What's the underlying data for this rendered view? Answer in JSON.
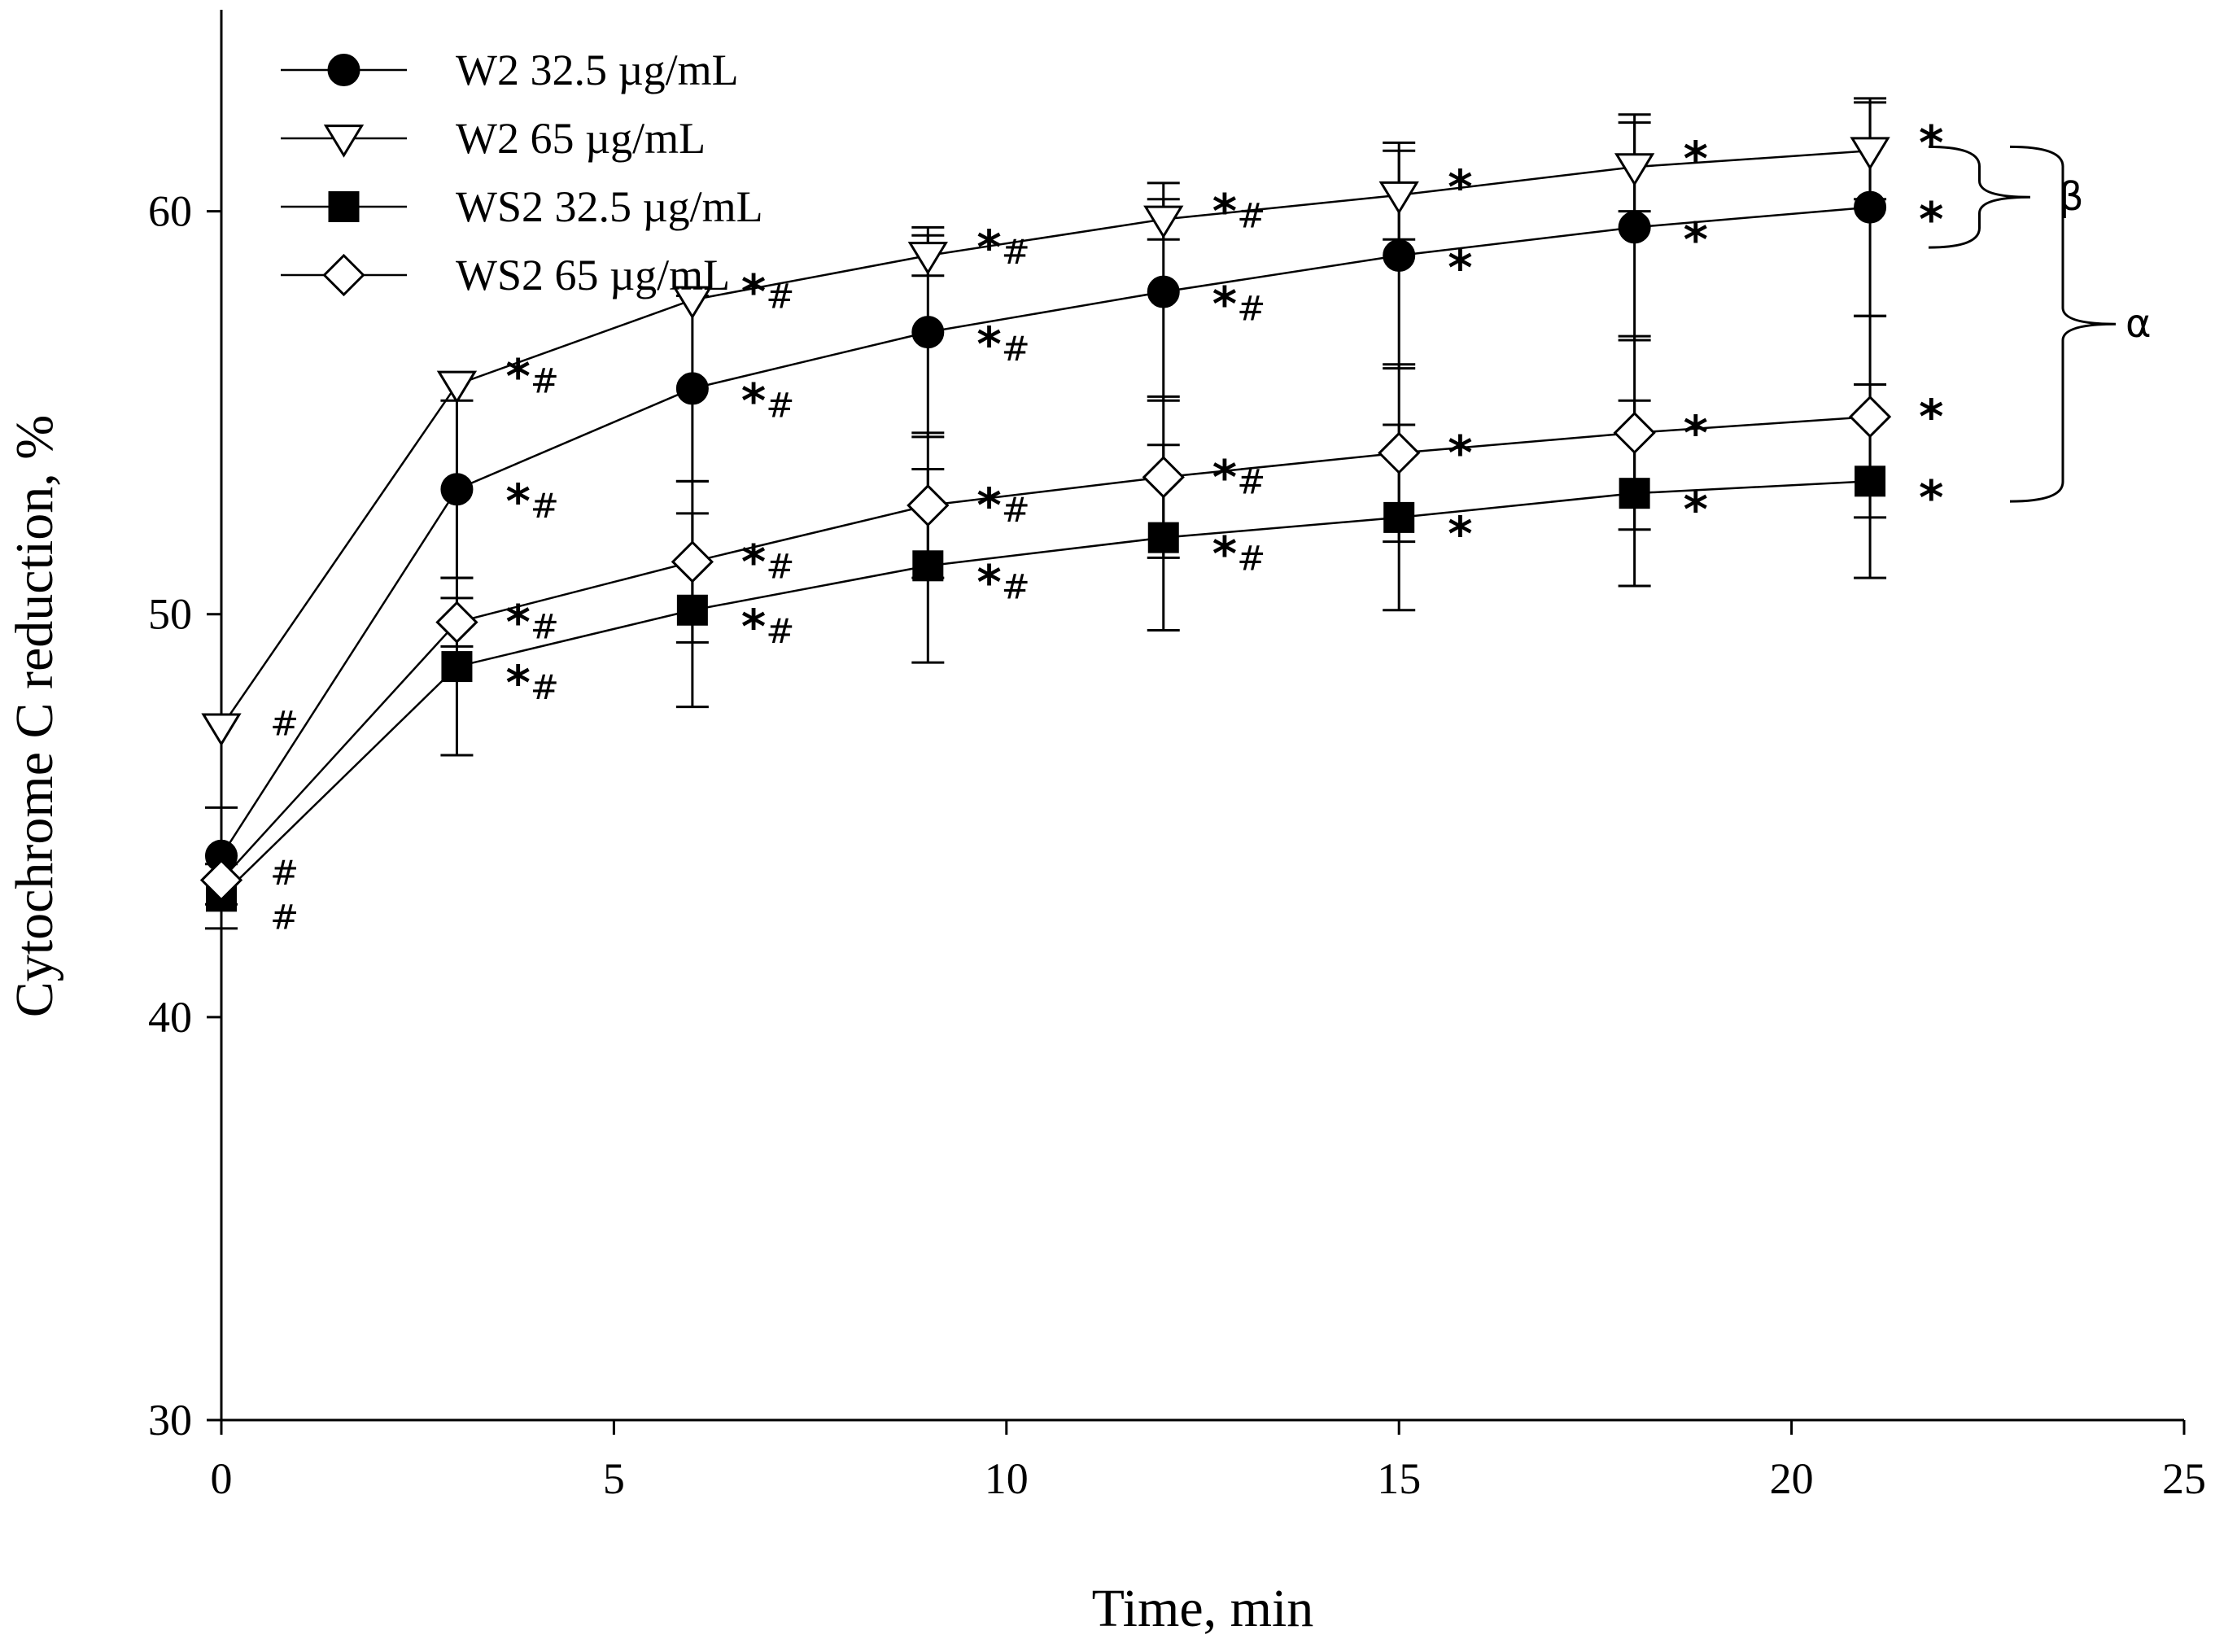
{
  "chart_data": {
    "type": "line",
    "title": "",
    "xlabel": "Time, min",
    "ylabel": "Cytochrome C reduction, %",
    "xlim": [
      0,
      25
    ],
    "ylim": [
      30,
      65
    ],
    "x_ticks": [
      0,
      5,
      10,
      15,
      20,
      25
    ],
    "y_ticks": [
      30,
      40,
      50,
      60
    ],
    "x_tick_labels": [
      "0",
      "5",
      "10",
      "15",
      "20",
      "25"
    ],
    "y_tick_labels": [
      "30",
      "40",
      "50",
      "60"
    ],
    "grid": false,
    "legend_position": "top-left",
    "x": [
      0,
      3,
      6,
      9,
      12,
      15,
      18,
      21
    ],
    "series": [
      {
        "name": "W2 32.5 µg/mL",
        "marker": "filled-circle",
        "values": [
          44.0,
          53.1,
          55.6,
          57.0,
          58.0,
          58.9,
          59.6,
          60.1
        ],
        "errors": [
          1.2,
          2.2,
          2.3,
          2.6,
          2.7,
          2.8,
          2.8,
          2.7
        ],
        "annotations": [
          "#",
          "*#",
          "*#",
          "*#",
          "*#",
          "*",
          "*",
          "*"
        ]
      },
      {
        "name": "W2 65 µg/mL",
        "marker": "open-triangle-down",
        "values": [
          47.2,
          55.7,
          57.8,
          58.9,
          59.8,
          60.4,
          61.1,
          61.5
        ],
        "errors": [
          0.0,
          0.0,
          0.0,
          0.5,
          0.5,
          1.1,
          1.1,
          1.2
        ],
        "annotations": [
          "#",
          "*#",
          "*#",
          "*#",
          "*#",
          "*",
          "*",
          "*"
        ]
      },
      {
        "name": "WS2 32.5 µg/mL",
        "marker": "filled-square",
        "values": [
          43.0,
          48.7,
          50.1,
          51.2,
          51.9,
          52.4,
          53.0,
          53.3
        ],
        "errors": [
          0.8,
          2.2,
          2.4,
          2.4,
          2.3,
          2.3,
          2.3,
          2.4
        ],
        "annotations": [
          "#",
          "*#",
          "*#",
          "*#",
          "*#",
          "*",
          "*",
          "*"
        ]
      },
      {
        "name": "WS2 65 µg/mL",
        "marker": "open-diamond",
        "values": [
          43.4,
          49.8,
          51.3,
          52.7,
          53.4,
          54.0,
          54.5,
          54.9
        ],
        "errors": [
          0.0,
          0.6,
          2.0,
          1.8,
          2.0,
          2.2,
          2.4,
          2.5
        ],
        "annotations": [
          "",
          "*#",
          "*#",
          "*#",
          "*#",
          "*",
          "*",
          "*"
        ]
      }
    ],
    "brackets": [
      {
        "label": "β",
        "from": 59.1,
        "to": 61.6
      },
      {
        "label": "α",
        "from": 52.8,
        "to": 61.6
      }
    ]
  }
}
